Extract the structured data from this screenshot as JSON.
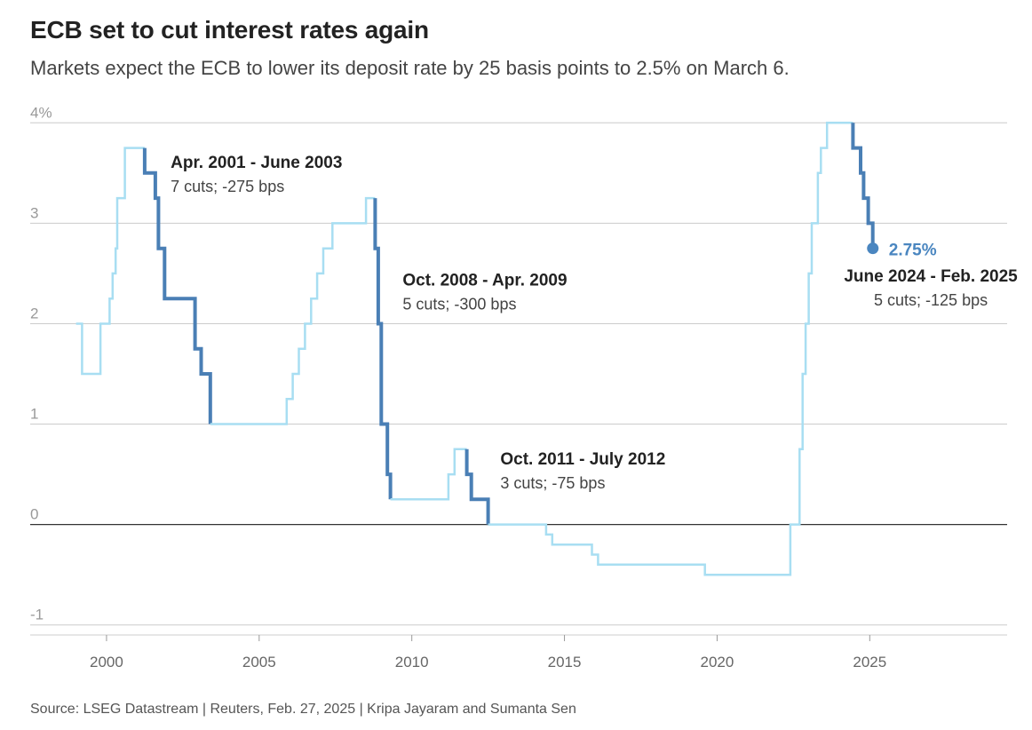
{
  "header": {
    "title": "ECB set to cut interest rates again",
    "subtitle": "Markets expect the ECB to lower its deposit rate by 25 basis points to 2.5% on March 6."
  },
  "footer": {
    "source": "Source: LSEG Datastream | Reuters, Feb. 27, 2025 | Kripa Jayaram and Sumanta Sen"
  },
  "colors": {
    "light": "#a8def2",
    "dark": "#4a7fb5",
    "current": "#4a86c0",
    "grid": "#cccccc",
    "zero": "#333333"
  },
  "chart_data": {
    "type": "line",
    "title": "ECB set to cut interest rates again",
    "subtitle": "Markets expect the ECB to lower its deposit rate by 25 basis points to 2.5% on March 6.",
    "xlabel": "",
    "ylabel": "",
    "xlim": [
      1997.5,
      2029.5
    ],
    "ylim": [
      -1.1,
      4.1
    ],
    "grid": true,
    "x_ticks": [
      {
        "value": 2000,
        "label": "2000"
      },
      {
        "value": 2005,
        "label": "2005"
      },
      {
        "value": 2010,
        "label": "2010"
      },
      {
        "value": 2015,
        "label": "2015"
      },
      {
        "value": 2020,
        "label": "2020"
      },
      {
        "value": 2025,
        "label": "2025"
      }
    ],
    "y_ticks": [
      {
        "value": 4,
        "label": "4%"
      },
      {
        "value": 3,
        "label": "3"
      },
      {
        "value": 2,
        "label": "2"
      },
      {
        "value": 1,
        "label": "1"
      },
      {
        "value": 0,
        "label": "0"
      },
      {
        "value": -1,
        "label": "-1"
      }
    ],
    "series": [
      {
        "style": "light",
        "points": [
          [
            1999.0,
            2.0
          ],
          [
            1999.2,
            2.0
          ],
          [
            1999.2,
            1.5
          ],
          [
            1999.8,
            1.5
          ],
          [
            1999.8,
            2.0
          ],
          [
            2000.1,
            2.0
          ],
          [
            2000.1,
            2.25
          ],
          [
            2000.2,
            2.25
          ],
          [
            2000.2,
            2.5
          ],
          [
            2000.3,
            2.5
          ],
          [
            2000.3,
            2.75
          ],
          [
            2000.35,
            2.75
          ],
          [
            2000.35,
            3.25
          ],
          [
            2000.6,
            3.25
          ],
          [
            2000.6,
            3.75
          ],
          [
            2001.25,
            3.75
          ]
        ]
      },
      {
        "style": "dark",
        "points": [
          [
            2001.25,
            3.75
          ],
          [
            2001.25,
            3.5
          ],
          [
            2001.6,
            3.5
          ],
          [
            2001.6,
            3.25
          ],
          [
            2001.7,
            3.25
          ],
          [
            2001.7,
            2.75
          ],
          [
            2001.9,
            2.75
          ],
          [
            2001.9,
            2.25
          ],
          [
            2002.9,
            2.25
          ],
          [
            2002.9,
            1.75
          ],
          [
            2003.1,
            1.75
          ],
          [
            2003.1,
            1.5
          ],
          [
            2003.4,
            1.5
          ],
          [
            2003.4,
            1.0
          ]
        ]
      },
      {
        "style": "light",
        "points": [
          [
            2003.4,
            1.0
          ],
          [
            2005.9,
            1.0
          ],
          [
            2005.9,
            1.25
          ],
          [
            2006.1,
            1.25
          ],
          [
            2006.1,
            1.5
          ],
          [
            2006.3,
            1.5
          ],
          [
            2006.3,
            1.75
          ],
          [
            2006.5,
            1.75
          ],
          [
            2006.5,
            2.0
          ],
          [
            2006.7,
            2.0
          ],
          [
            2006.7,
            2.25
          ],
          [
            2006.9,
            2.25
          ],
          [
            2006.9,
            2.5
          ],
          [
            2007.1,
            2.5
          ],
          [
            2007.1,
            2.75
          ],
          [
            2007.4,
            2.75
          ],
          [
            2007.4,
            3.0
          ],
          [
            2008.5,
            3.0
          ],
          [
            2008.5,
            3.25
          ],
          [
            2008.8,
            3.25
          ]
        ]
      },
      {
        "style": "dark",
        "points": [
          [
            2008.8,
            3.25
          ],
          [
            2008.8,
            2.75
          ],
          [
            2008.9,
            2.75
          ],
          [
            2008.9,
            2.0
          ],
          [
            2009.0,
            2.0
          ],
          [
            2009.0,
            1.0
          ],
          [
            2009.2,
            1.0
          ],
          [
            2009.2,
            0.5
          ],
          [
            2009.3,
            0.5
          ],
          [
            2009.3,
            0.25
          ]
        ]
      },
      {
        "style": "light",
        "points": [
          [
            2009.3,
            0.25
          ],
          [
            2011.2,
            0.25
          ],
          [
            2011.2,
            0.5
          ],
          [
            2011.4,
            0.5
          ],
          [
            2011.4,
            0.75
          ],
          [
            2011.8,
            0.75
          ]
        ]
      },
      {
        "style": "dark",
        "points": [
          [
            2011.8,
            0.75
          ],
          [
            2011.8,
            0.5
          ],
          [
            2011.95,
            0.5
          ],
          [
            2011.95,
            0.25
          ],
          [
            2012.5,
            0.25
          ],
          [
            2012.5,
            0.0
          ]
        ]
      },
      {
        "style": "light",
        "points": [
          [
            2012.5,
            0.0
          ],
          [
            2014.4,
            0.0
          ],
          [
            2014.4,
            -0.1
          ],
          [
            2014.6,
            -0.1
          ],
          [
            2014.6,
            -0.2
          ],
          [
            2015.9,
            -0.2
          ],
          [
            2015.9,
            -0.3
          ],
          [
            2016.1,
            -0.3
          ],
          [
            2016.1,
            -0.4
          ],
          [
            2019.6,
            -0.4
          ],
          [
            2019.6,
            -0.5
          ],
          [
            2022.4,
            -0.5
          ],
          [
            2022.4,
            0.0
          ],
          [
            2022.7,
            0.0
          ],
          [
            2022.7,
            0.75
          ],
          [
            2022.8,
            0.75
          ],
          [
            2022.8,
            1.5
          ],
          [
            2022.9,
            1.5
          ],
          [
            2022.9,
            2.0
          ],
          [
            2023.0,
            2.0
          ],
          [
            2023.0,
            2.5
          ],
          [
            2023.1,
            2.5
          ],
          [
            2023.1,
            3.0
          ],
          [
            2023.3,
            3.0
          ],
          [
            2023.3,
            3.5
          ],
          [
            2023.4,
            3.5
          ],
          [
            2023.4,
            3.75
          ],
          [
            2023.6,
            3.75
          ],
          [
            2023.6,
            4.0
          ],
          [
            2024.45,
            4.0
          ]
        ]
      },
      {
        "style": "dark",
        "points": [
          [
            2024.45,
            4.0
          ],
          [
            2024.45,
            3.75
          ],
          [
            2024.7,
            3.75
          ],
          [
            2024.7,
            3.5
          ],
          [
            2024.8,
            3.5
          ],
          [
            2024.8,
            3.25
          ],
          [
            2024.95,
            3.25
          ],
          [
            2024.95,
            3.0
          ],
          [
            2025.1,
            3.0
          ],
          [
            2025.1,
            2.75
          ]
        ]
      }
    ],
    "current_point": {
      "x": 2025.1,
      "y": 2.75,
      "label": "2.75%"
    },
    "annotations": [
      {
        "title": "Apr. 2001 - June 2003",
        "sub": "7 cuts; -275 bps",
        "x": 2002.1,
        "y": 3.55,
        "anchor": "start"
      },
      {
        "title": "Oct. 2008 - Apr. 2009",
        "sub": "5 cuts; -300 bps",
        "x": 2009.7,
        "y": 2.38,
        "anchor": "start"
      },
      {
        "title": "Oct. 2011 - July 2012",
        "sub": "3 cuts; -75 bps",
        "x": 2012.9,
        "y": 0.6,
        "anchor": "start"
      },
      {
        "title": "June 2024 - Feb. 2025",
        "sub": "5 cuts; -125 bps",
        "x": 2027.0,
        "y": 2.42,
        "anchor": "middle"
      }
    ]
  }
}
